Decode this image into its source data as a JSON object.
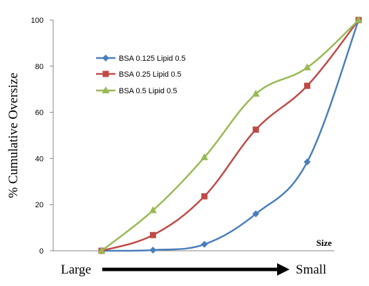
{
  "chart_data": {
    "type": "line",
    "title": "",
    "xlabel": "Size",
    "ylabel": "% Cumulative Oversize",
    "ylim": [
      0,
      100
    ],
    "yticks": [
      "0",
      "20",
      "40",
      "60",
      "80",
      "100"
    ],
    "x": [
      1,
      2,
      3,
      4,
      5,
      6
    ],
    "series": [
      {
        "name": "BSA 0.125 Lipid 0.5",
        "color": "#4a7ebb",
        "marker": "diamond",
        "values": [
          0,
          0.3,
          2.8,
          16,
          38.5,
          100
        ]
      },
      {
        "name": "BSA 0.25 Lipid 0.5",
        "color": "#be4b48",
        "marker": "square",
        "values": [
          0,
          6.8,
          23.6,
          52.5,
          71.5,
          100
        ]
      },
      {
        "name": "BSA 0.5 Lipid 0.5",
        "color": "#98b954",
        "marker": "triangle",
        "values": [
          0,
          17.5,
          40.5,
          68,
          79.4,
          100
        ]
      }
    ],
    "grid": false,
    "legend_position": "upper-left",
    "arrow": {
      "start_label": "Large",
      "end_label": "Small"
    }
  }
}
